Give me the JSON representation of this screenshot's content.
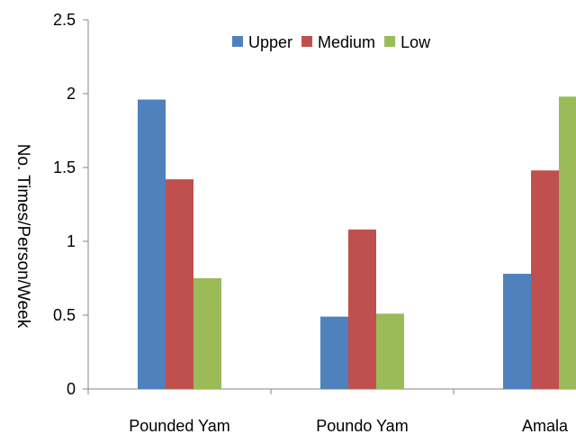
{
  "chart_data": {
    "type": "bar",
    "title": "",
    "xlabel": "",
    "ylabel": "No. Times/Person/Week",
    "ylim": [
      0,
      2.5
    ],
    "yticks": [
      "0",
      "0.5",
      "1",
      "1.5",
      "2",
      "2.5"
    ],
    "categories": [
      "Pounded Yam",
      "Poundo Yam",
      "Amala"
    ],
    "series": [
      {
        "name": "Upper",
        "color": "#4f81bd",
        "values": [
          1.96,
          0.49,
          0.78
        ]
      },
      {
        "name": "Medium",
        "color": "#c0504d",
        "values": [
          1.42,
          1.08,
          1.48
        ]
      },
      {
        "name": "Low",
        "color": "#9bbb59",
        "values": [
          0.75,
          0.51,
          1.98
        ]
      }
    ],
    "legend_position": "top-right",
    "grid": false
  }
}
